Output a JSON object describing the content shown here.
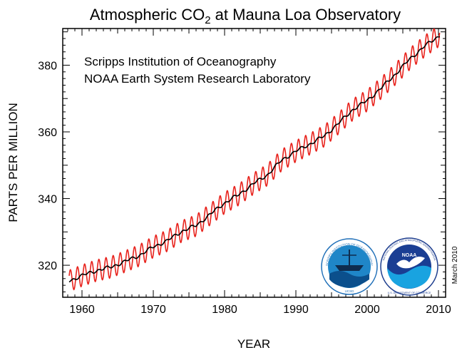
{
  "chart_data": {
    "type": "line",
    "title_main": "Atmospheric CO",
    "title_sub": "2",
    "title_rest": " at Mauna Loa Observatory",
    "xlabel": "YEAR",
    "ylabel": "PARTS PER MILLION",
    "xlim": [
      1957.3,
      2011
    ],
    "ylim": [
      310.4,
      391
    ],
    "x_ticks": [
      1960,
      1970,
      1980,
      1990,
      2000,
      2010
    ],
    "y_ticks": [
      320,
      340,
      360,
      380
    ],
    "x_tick_labels": [
      "1960",
      "1970",
      "1980",
      "1990",
      "2000",
      "2010"
    ],
    "y_tick_labels": [
      "320",
      "340",
      "360",
      "380"
    ],
    "annotations": [
      "Scripps Institution of Oceanography",
      "NOAA Earth System Research Laboratory"
    ],
    "date_note": "March 2010",
    "grid": false,
    "colors": {
      "monthly": "#e8231d",
      "trend": "#000000",
      "axes": "#000000"
    },
    "series": [
      {
        "key": "trend",
        "x": [
          1958.2,
          1960,
          1962,
          1964,
          1966,
          1968,
          1970,
          1972,
          1974,
          1976,
          1978,
          1980,
          1982,
          1984,
          1986,
          1988,
          1990,
          1992,
          1994,
          1996,
          1998,
          2000,
          2002,
          2004,
          2006,
          2008,
          2010.2
        ],
        "values": [
          315.3,
          316.9,
          318.4,
          319.4,
          321.1,
          322.9,
          325.5,
          327.4,
          330.2,
          331.9,
          335.3,
          338.7,
          341.2,
          344.4,
          347.1,
          351.5,
          354.2,
          356.4,
          358.8,
          362.6,
          366.7,
          369.4,
          373.2,
          377.4,
          381.9,
          385.6,
          389.0
        ]
      },
      {
        "key": "monthly",
        "seasonal_amplitude_ppm": 3.2,
        "derived_from": "trend"
      }
    ],
    "logos": [
      "scripps-seal",
      "noaa-seal"
    ],
    "logo_text": {
      "scripps": "SCRIPPS INSTITUTION OF OCEANOGRAPHY",
      "scripps_bottom": "UCSD",
      "noaa": "NOAA",
      "noaa_ring": "NATIONAL OCEANIC AND ATMOSPHERIC ADMINISTRATION",
      "noaa_bottom": "U.S. DEPARTMENT OF COMMERCE"
    }
  }
}
